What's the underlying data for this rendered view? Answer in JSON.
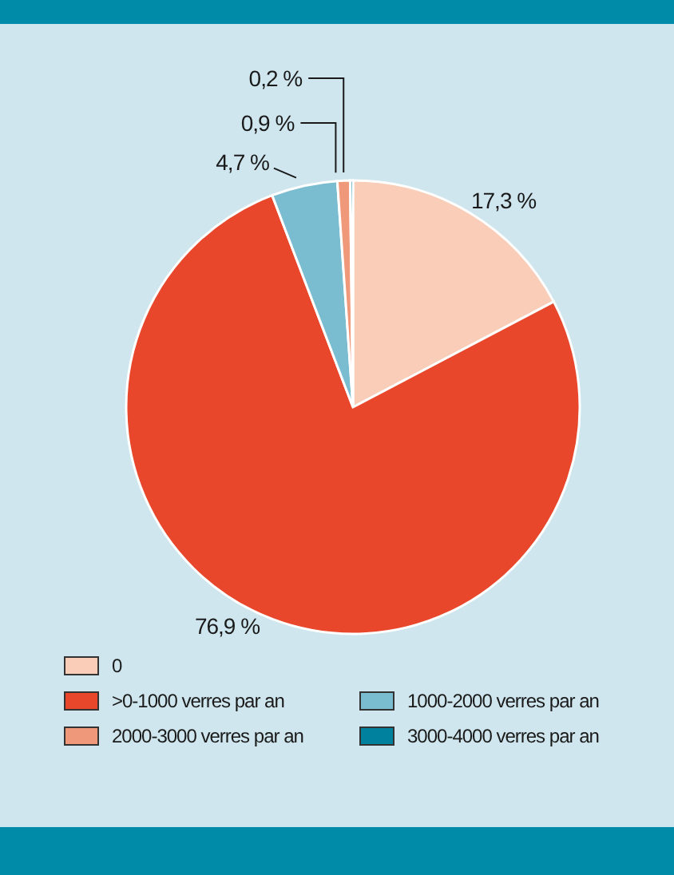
{
  "chart_data": {
    "type": "pie",
    "categories": [
      "0",
      ">0-1000 verres par an",
      "1000-2000 verres par an",
      "2000-3000 verres par an",
      "3000-4000 verres par an"
    ],
    "values": [
      17.3,
      76.9,
      4.7,
      0.9,
      0.2
    ],
    "colors": [
      "#f9cdb8",
      "#e8472b",
      "#7bbdd0",
      "#f0987a",
      "#00829e"
    ],
    "value_labels": [
      "17,3 %",
      "76,9 %",
      "4,7 %",
      "0,9 %",
      "0,2 %"
    ],
    "legend": "bottom"
  }
}
